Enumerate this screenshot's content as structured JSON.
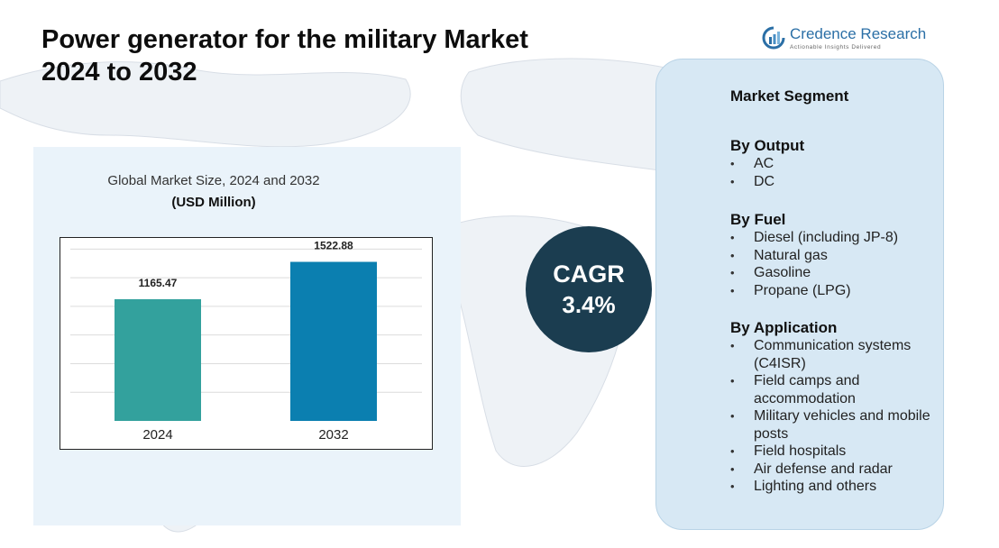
{
  "title": {
    "line1": "Power generator for the military Market",
    "line2": "2024  to 2032"
  },
  "logo": {
    "name": "Credence Research",
    "tagline": "Actionable Insights Delivered",
    "color": "#2b6fa6"
  },
  "chart_data": {
    "type": "bar",
    "title": "Global Market Size, 2024 and 2032",
    "unit_label": "(USD Million)",
    "categories": [
      "2024",
      "2032"
    ],
    "values": [
      1165.47,
      1522.88
    ],
    "value_labels": [
      "1165.47",
      "1522.88"
    ],
    "colors": [
      "#33a19d",
      "#0b7fb0"
    ],
    "ylim": [
      0,
      1700
    ],
    "grid": true,
    "legend": "none"
  },
  "cagr": {
    "label": "CAGR",
    "value": "3.4%"
  },
  "segments": {
    "title": "Market Segment",
    "groups": [
      {
        "heading": "By Output",
        "items": [
          "AC",
          "DC"
        ]
      },
      {
        "heading": "By Fuel",
        "items": [
          "Diesel (including JP-8)",
          "Natural gas",
          "Gasoline",
          "Propane (LPG)"
        ]
      },
      {
        "heading": "By Application",
        "items": [
          "Communication systems (C4ISR)",
          "Field camps and accommodation",
          "Military vehicles and mobile posts",
          "Field hospitals",
          "Air defense and radar",
          "Lighting and others"
        ]
      }
    ]
  }
}
